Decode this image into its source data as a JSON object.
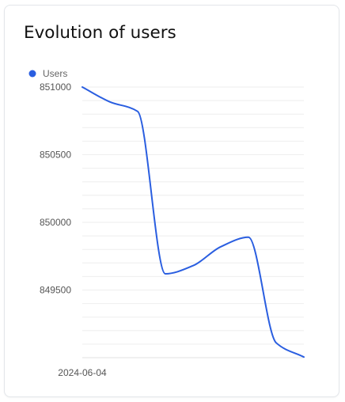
{
  "card": {
    "title": "Evolution of users"
  },
  "colors": {
    "series": "#2a5ee0",
    "grid": "#eeeeee",
    "axis_text": "#555555",
    "legend_text": "#666666"
  },
  "chart_data": {
    "type": "line",
    "title": "Evolution of users",
    "legend": "top-left",
    "grid": true,
    "xlabel": "",
    "ylabel": "",
    "ylim": [
      849000,
      851000
    ],
    "yticks": [
      851000,
      850500,
      850000,
      849500
    ],
    "x_tick_labels": [
      "2024-06-04"
    ],
    "series": [
      {
        "name": "Users",
        "color": "#2a5ee0",
        "x": [
          0,
          1,
          2,
          3,
          4,
          5,
          6,
          7,
          8
        ],
        "values": [
          851000,
          850890,
          850820,
          849620,
          849680,
          849820,
          849890,
          849110,
          849005
        ]
      }
    ]
  }
}
